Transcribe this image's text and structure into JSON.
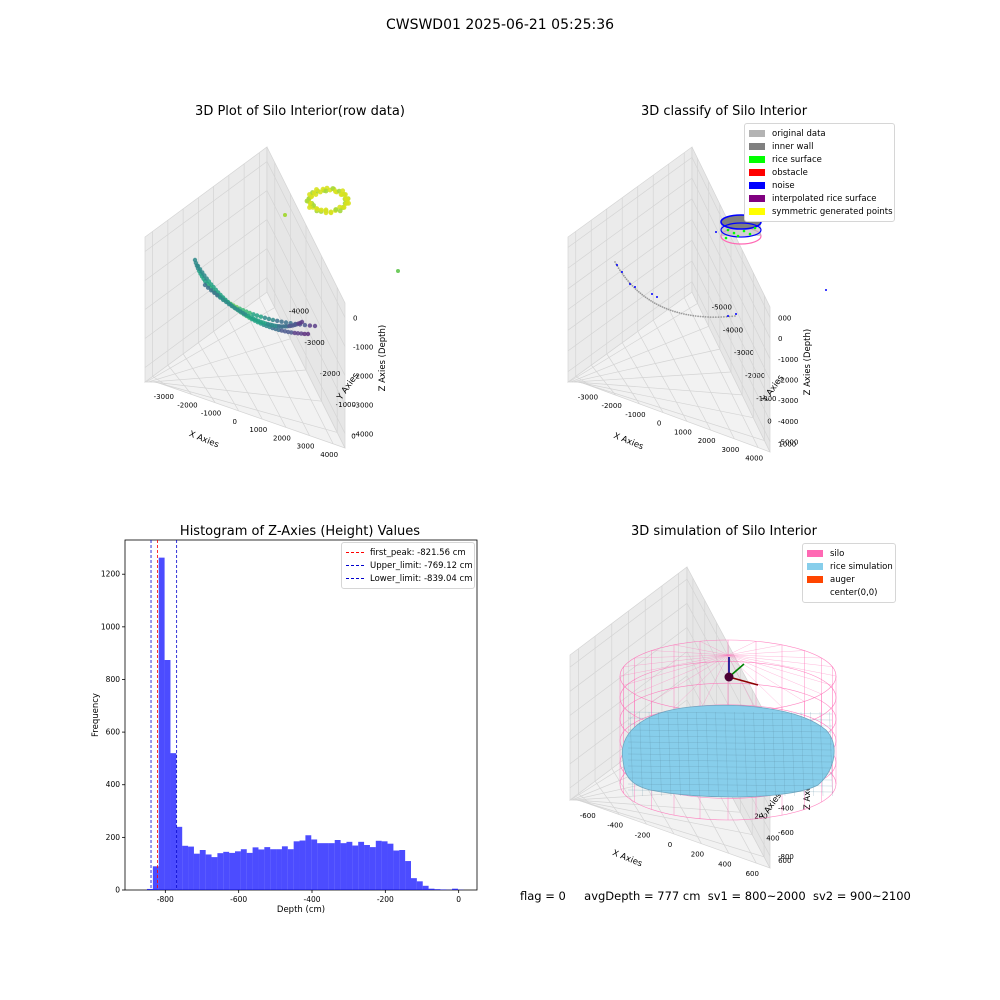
{
  "suptitle": "CWSWD01 2025-06-21 05:25:36",
  "status": {
    "flag": "flag = 0",
    "avg_depth": "avgDepth = 777 cm",
    "sv1": "sv1 = 800~2000",
    "sv2": "sv2 = 900~2100"
  },
  "chart_data": [
    {
      "type": "scatter",
      "title": "3D Plot of Silo Interior(row data)",
      "xlabel": "X Axies",
      "ylabel": "Y Axies",
      "zlabel": "Z Axies (Depth)",
      "x_ticks": [
        "-3000",
        "-2000",
        "-1000",
        "0",
        "1000",
        "2000",
        "3000",
        "4000"
      ],
      "y_ticks": [
        "-4000",
        "-3000",
        "-2000",
        "-1000",
        "0"
      ],
      "z_ticks": [
        "-4000",
        "-3000",
        "-2000",
        "-1000",
        "0"
      ],
      "colormap": "viridis"
    },
    {
      "type": "scatter",
      "title": "3D classify of Silo Interior",
      "xlabel": "X Axies",
      "ylabel": "Y Axies",
      "zlabel": "Z Axies (Depth)",
      "x_ticks": [
        "-3000",
        "-2000",
        "-1000",
        "0",
        "1000",
        "2000",
        "3000",
        "4000"
      ],
      "y_ticks": [
        "-5000",
        "-4000",
        "-3000",
        "-2000",
        "-1000",
        "0",
        "1000"
      ],
      "z_ticks": [
        "-5000",
        "-4000",
        "-3000",
        "-2000",
        "-1000",
        "0",
        "1000"
      ],
      "z_ticks_visible": [
        "-5000",
        "-4000",
        "-3000",
        "-2000",
        "-1000",
        "0",
        "000"
      ],
      "legend": [
        {
          "label": "original data",
          "color": "#b3b3b3"
        },
        {
          "label": "inner wall",
          "color": "#808080"
        },
        {
          "label": "rice surface",
          "color": "#00ff00"
        },
        {
          "label": "obstacle",
          "color": "#ff0000"
        },
        {
          "label": "noise",
          "color": "#0000ff"
        },
        {
          "label": "interpolated rice surface",
          "color": "#800080"
        },
        {
          "label": "symmetric generated points",
          "color": "#ffff00"
        }
      ]
    },
    {
      "type": "bar",
      "title": "Histogram of Z-Axies (Height) Values",
      "xlabel": "Depth (cm)",
      "ylabel": "Frequency",
      "xlim": [
        -910,
        50
      ],
      "ylim": [
        0,
        1330
      ],
      "x_ticks": [
        -800,
        -600,
        -400,
        -200,
        0
      ],
      "y_ticks": [
        0,
        200,
        400,
        600,
        800,
        1000,
        1200
      ],
      "bin_width": 16,
      "bin_starts": [
        -850,
        -834,
        -818,
        -802,
        -786,
        -770,
        -754,
        -738,
        -722,
        -706,
        -690,
        -674,
        -658,
        -642,
        -626,
        -610,
        -594,
        -578,
        -562,
        -546,
        -530,
        -514,
        -498,
        -482,
        -466,
        -450,
        -434,
        -418,
        -402,
        -386,
        -370,
        -354,
        -338,
        -322,
        -306,
        -290,
        -274,
        -258,
        -242,
        -226,
        -210,
        -194,
        -178,
        -162,
        -146,
        -130,
        -114,
        -98,
        -82,
        -66,
        -50,
        -34,
        -18,
        -2
      ],
      "values": [
        4,
        90,
        1263,
        874,
        520,
        240,
        168,
        165,
        138,
        152,
        135,
        125,
        140,
        145,
        141,
        147,
        155,
        141,
        162,
        154,
        163,
        155,
        155,
        166,
        155,
        185,
        188,
        208,
        192,
        178,
        178,
        178,
        190,
        178,
        183,
        169,
        183,
        171,
        163,
        187,
        185,
        176,
        150,
        152,
        110,
        45,
        33,
        16,
        5,
        3,
        2,
        1,
        5,
        1
      ],
      "color": "#0000ff",
      "vlines": [
        {
          "label": "first_peak: -821.56 cm",
          "x": -821.56,
          "color": "#ff0000"
        },
        {
          "label": "Upper_limit: -769.12 cm",
          "x": -769.12,
          "color": "#0000cd"
        },
        {
          "label": "Lower_limit: -839.04 cm",
          "x": -839.04,
          "color": "#0000cd"
        }
      ]
    },
    {
      "type": "scatter",
      "title": "3D simulation of Silo Interior",
      "xlabel": "X Axies",
      "ylabel": "Y Axies",
      "zlabel": "Z Axes (Depth)",
      "x_ticks": [
        "-600",
        "-400",
        "-200",
        "0",
        "200",
        "400",
        "600"
      ],
      "y_ticks": [
        "-600",
        "-400",
        "-200",
        "0",
        "200",
        "400",
        "600"
      ],
      "z_ticks": [
        "-800",
        "-600",
        "-400",
        "-200",
        "0",
        "200"
      ],
      "legend": [
        {
          "label": "silo",
          "color": "#ff69b4"
        },
        {
          "label": "rice simulation",
          "color": "#87ceeb"
        },
        {
          "label": "auger",
          "color": "#ff4500"
        },
        {
          "label": "center(0,0)",
          "color": ""
        }
      ]
    }
  ]
}
